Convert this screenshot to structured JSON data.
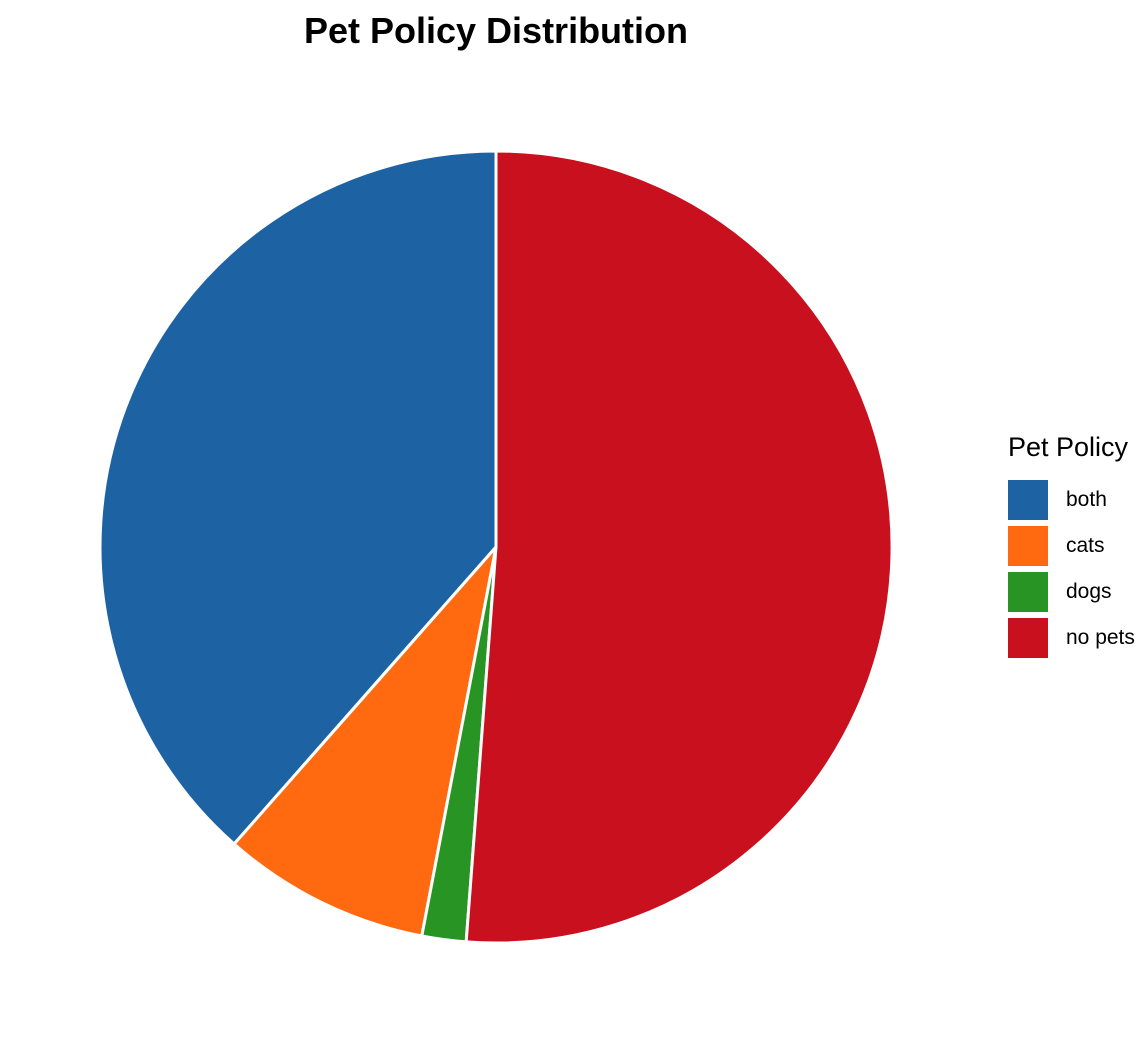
{
  "chart_data": {
    "type": "pie",
    "title": "Pet Policy Distribution",
    "legend_title": "Pet Policy",
    "legend_position": "right",
    "start_angle": "12 o'clock, counter-clockwise",
    "slices": [
      {
        "label": "both",
        "value": 38.5,
        "color": "#1D63A4"
      },
      {
        "label": "cats",
        "value": 8.5,
        "color": "#FF6A10"
      },
      {
        "label": "dogs",
        "value": 1.8,
        "color": "#279423"
      },
      {
        "label": "no pets",
        "value": 51.2,
        "color": "#C8101E"
      }
    ]
  }
}
